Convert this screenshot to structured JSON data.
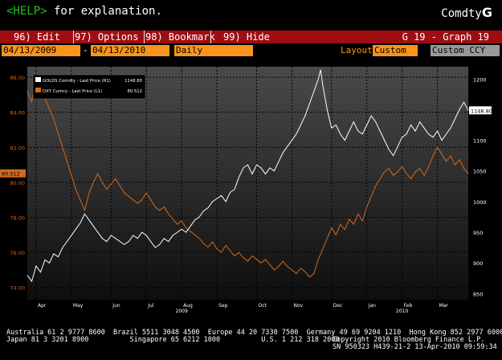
{
  "header": {
    "help_key": "<HELP>",
    "help_text": " for explanation.",
    "brand_text": "Comdty",
    "brand_logo": "G"
  },
  "menu": {
    "items": [
      "96) Edit",
      "97) Options",
      "98) Bookmark",
      "99) Hide"
    ],
    "graph_title": "G 19 - Graph 19"
  },
  "controls": {
    "start_date": "04/13/2009",
    "end_date": "04/13/2010",
    "period": "Daily",
    "layout_label": "Layout",
    "layout_value": "Custom",
    "currency": "Custom CCY"
  },
  "chart_data": {
    "type": "line",
    "grid": true,
    "legend_position": "top-left",
    "left_axis": {
      "range": [
        73.3,
        86.6
      ],
      "ticks": [
        74.0,
        76.0,
        78.0,
        80.0,
        82.0,
        84.0,
        86.0
      ],
      "labels": [
        "74.00",
        "76.00",
        "78.00",
        "80.00",
        "82.00",
        "84.00",
        "86.00"
      ]
    },
    "right_axis": {
      "range": [
        840,
        1220
      ],
      "ticks": [
        850,
        900,
        950,
        1000,
        1050,
        1100,
        1150,
        1200
      ],
      "labels": [
        "850",
        "900",
        "950",
        "1000",
        "1050",
        "1100",
        "1150",
        "1200"
      ]
    },
    "x_axis": {
      "months": [
        "Apr",
        "May",
        "Jun",
        "Jul",
        "Aug",
        "Sep",
        "Oct",
        "Nov",
        "Dec",
        "Jan",
        "Feb",
        "Mar"
      ],
      "month_pos": [
        0.02,
        0.1,
        0.19,
        0.27,
        0.35,
        0.43,
        0.52,
        0.6,
        0.69,
        0.77,
        0.85,
        0.93
      ],
      "years": [
        {
          "label": "2009",
          "pos": 0.35
        },
        {
          "label": "2010",
          "pos": 0.85
        }
      ]
    },
    "series": [
      {
        "name": "GOLDS Comdty - Last Price (R1)",
        "last_label": "1148.80",
        "last": 1148.8,
        "axis": "right",
        "color": "#ffffff",
        "points": [
          [
            0.0,
            880
          ],
          [
            0.01,
            870
          ],
          [
            0.02,
            895
          ],
          [
            0.03,
            885
          ],
          [
            0.04,
            905
          ],
          [
            0.05,
            900
          ],
          [
            0.06,
            915
          ],
          [
            0.07,
            910
          ],
          [
            0.08,
            925
          ],
          [
            0.09,
            935
          ],
          [
            0.1,
            945
          ],
          [
            0.11,
            955
          ],
          [
            0.12,
            965
          ],
          [
            0.13,
            980
          ],
          [
            0.14,
            970
          ],
          [
            0.15,
            960
          ],
          [
            0.16,
            950
          ],
          [
            0.17,
            940
          ],
          [
            0.18,
            935
          ],
          [
            0.19,
            945
          ],
          [
            0.2,
            940
          ],
          [
            0.21,
            935
          ],
          [
            0.22,
            930
          ],
          [
            0.23,
            935
          ],
          [
            0.24,
            945
          ],
          [
            0.25,
            940
          ],
          [
            0.26,
            950
          ],
          [
            0.27,
            945
          ],
          [
            0.28,
            935
          ],
          [
            0.29,
            925
          ],
          [
            0.3,
            930
          ],
          [
            0.31,
            940
          ],
          [
            0.32,
            935
          ],
          [
            0.33,
            945
          ],
          [
            0.34,
            950
          ],
          [
            0.35,
            955
          ],
          [
            0.36,
            950
          ],
          [
            0.37,
            960
          ],
          [
            0.38,
            970
          ],
          [
            0.39,
            975
          ],
          [
            0.4,
            985
          ],
          [
            0.41,
            990
          ],
          [
            0.42,
            1000
          ],
          [
            0.43,
            1005
          ],
          [
            0.44,
            1010
          ],
          [
            0.45,
            1000
          ],
          [
            0.46,
            1015
          ],
          [
            0.47,
            1020
          ],
          [
            0.48,
            1040
          ],
          [
            0.49,
            1055
          ],
          [
            0.5,
            1060
          ],
          [
            0.51,
            1045
          ],
          [
            0.52,
            1060
          ],
          [
            0.53,
            1055
          ],
          [
            0.54,
            1045
          ],
          [
            0.55,
            1055
          ],
          [
            0.56,
            1050
          ],
          [
            0.57,
            1065
          ],
          [
            0.58,
            1080
          ],
          [
            0.59,
            1090
          ],
          [
            0.6,
            1100
          ],
          [
            0.61,
            1110
          ],
          [
            0.62,
            1125
          ],
          [
            0.63,
            1140
          ],
          [
            0.64,
            1160
          ],
          [
            0.65,
            1180
          ],
          [
            0.66,
            1200
          ],
          [
            0.665,
            1215
          ],
          [
            0.67,
            1190
          ],
          [
            0.68,
            1150
          ],
          [
            0.69,
            1120
          ],
          [
            0.7,
            1125
          ],
          [
            0.71,
            1110
          ],
          [
            0.72,
            1100
          ],
          [
            0.73,
            1115
          ],
          [
            0.74,
            1130
          ],
          [
            0.75,
            1115
          ],
          [
            0.76,
            1110
          ],
          [
            0.77,
            1125
          ],
          [
            0.78,
            1140
          ],
          [
            0.79,
            1130
          ],
          [
            0.8,
            1115
          ],
          [
            0.81,
            1100
          ],
          [
            0.82,
            1085
          ],
          [
            0.83,
            1075
          ],
          [
            0.84,
            1090
          ],
          [
            0.85,
            1105
          ],
          [
            0.86,
            1110
          ],
          [
            0.87,
            1125
          ],
          [
            0.88,
            1115
          ],
          [
            0.89,
            1130
          ],
          [
            0.9,
            1120
          ],
          [
            0.91,
            1110
          ],
          [
            0.92,
            1105
          ],
          [
            0.93,
            1115
          ],
          [
            0.94,
            1100
          ],
          [
            0.95,
            1110
          ],
          [
            0.96,
            1120
          ],
          [
            0.97,
            1135
          ],
          [
            0.98,
            1150
          ],
          [
            0.99,
            1162
          ],
          [
            1.0,
            1148.8
          ]
        ]
      },
      {
        "name": "DXY Curncy - Last Price (L1)",
        "last_label": "80.512",
        "last": 80.512,
        "axis": "left",
        "color": "#d2691e",
        "points": [
          [
            0.0,
            85.2
          ],
          [
            0.01,
            84.6
          ],
          [
            0.02,
            86.0
          ],
          [
            0.03,
            85.4
          ],
          [
            0.04,
            84.8
          ],
          [
            0.05,
            84.2
          ],
          [
            0.06,
            83.6
          ],
          [
            0.07,
            82.8
          ],
          [
            0.08,
            82.0
          ],
          [
            0.09,
            81.2
          ],
          [
            0.1,
            80.4
          ],
          [
            0.11,
            79.6
          ],
          [
            0.12,
            79.0
          ],
          [
            0.13,
            78.4
          ],
          [
            0.14,
            79.4
          ],
          [
            0.15,
            80.0
          ],
          [
            0.16,
            80.5
          ],
          [
            0.17,
            80.0
          ],
          [
            0.18,
            79.6
          ],
          [
            0.19,
            79.9
          ],
          [
            0.2,
            80.2
          ],
          [
            0.21,
            79.8
          ],
          [
            0.22,
            79.4
          ],
          [
            0.23,
            79.2
          ],
          [
            0.24,
            79.0
          ],
          [
            0.25,
            78.8
          ],
          [
            0.26,
            79.0
          ],
          [
            0.27,
            79.4
          ],
          [
            0.28,
            79.0
          ],
          [
            0.29,
            78.6
          ],
          [
            0.3,
            78.4
          ],
          [
            0.31,
            78.6
          ],
          [
            0.32,
            78.2
          ],
          [
            0.33,
            77.9
          ],
          [
            0.34,
            77.6
          ],
          [
            0.35,
            77.8
          ],
          [
            0.36,
            77.4
          ],
          [
            0.37,
            77.2
          ],
          [
            0.38,
            77.0
          ],
          [
            0.39,
            76.8
          ],
          [
            0.4,
            76.5
          ],
          [
            0.41,
            76.3
          ],
          [
            0.42,
            76.6
          ],
          [
            0.43,
            76.2
          ],
          [
            0.44,
            76.0
          ],
          [
            0.45,
            76.4
          ],
          [
            0.46,
            76.1
          ],
          [
            0.47,
            75.8
          ],
          [
            0.48,
            76.0
          ],
          [
            0.49,
            75.7
          ],
          [
            0.5,
            75.5
          ],
          [
            0.51,
            75.8
          ],
          [
            0.52,
            75.6
          ],
          [
            0.53,
            75.4
          ],
          [
            0.54,
            75.6
          ],
          [
            0.55,
            75.3
          ],
          [
            0.56,
            75.0
          ],
          [
            0.57,
            75.2
          ],
          [
            0.58,
            75.5
          ],
          [
            0.59,
            75.2
          ],
          [
            0.6,
            75.0
          ],
          [
            0.61,
            74.8
          ],
          [
            0.62,
            75.1
          ],
          [
            0.63,
            74.9
          ],
          [
            0.64,
            74.6
          ],
          [
            0.65,
            74.8
          ],
          [
            0.66,
            75.6
          ],
          [
            0.67,
            76.2
          ],
          [
            0.68,
            76.8
          ],
          [
            0.69,
            77.4
          ],
          [
            0.7,
            77.0
          ],
          [
            0.71,
            77.6
          ],
          [
            0.72,
            77.3
          ],
          [
            0.73,
            77.9
          ],
          [
            0.74,
            77.6
          ],
          [
            0.75,
            78.2
          ],
          [
            0.76,
            77.8
          ],
          [
            0.77,
            78.6
          ],
          [
            0.78,
            79.2
          ],
          [
            0.79,
            79.8
          ],
          [
            0.8,
            80.2
          ],
          [
            0.81,
            80.6
          ],
          [
            0.82,
            80.8
          ],
          [
            0.83,
            80.4
          ],
          [
            0.84,
            80.6
          ],
          [
            0.85,
            80.9
          ],
          [
            0.86,
            80.5
          ],
          [
            0.87,
            80.2
          ],
          [
            0.88,
            80.6
          ],
          [
            0.89,
            80.8
          ],
          [
            0.9,
            80.4
          ],
          [
            0.91,
            80.9
          ],
          [
            0.92,
            81.5
          ],
          [
            0.93,
            82.0
          ],
          [
            0.94,
            81.6
          ],
          [
            0.95,
            81.2
          ],
          [
            0.96,
            81.5
          ],
          [
            0.97,
            81.0
          ],
          [
            0.98,
            81.3
          ],
          [
            0.99,
            80.8
          ],
          [
            1.0,
            80.5
          ]
        ]
      }
    ]
  },
  "footer": {
    "line1": "Australia 61 2 9777 8600  Brazil 5511 3048 4500  Europe 44 20 7330 7500  Germany 49 69 9204 1210  Hong Kong 852 2977 6000",
    "line2a": "Japan 81 3 3201 8900          Singapore 65 6212 1000          U.S. 1 212 318 2000",
    "line2b": "Copyright 2010 Bloomberg Finance L.P.",
    "line3": "SN 950323 H439-21-2 13-Apr-2010 09:59:34"
  }
}
